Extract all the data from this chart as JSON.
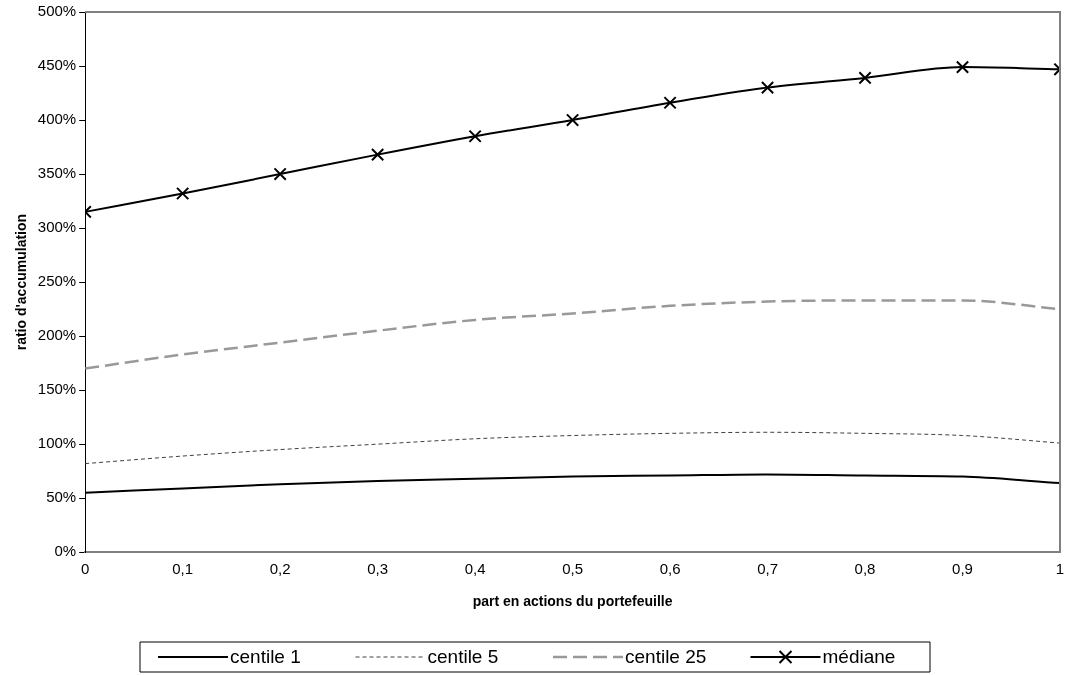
{
  "chart_data": {
    "type": "line",
    "xlabel": "part en actions du portefeuille",
    "ylabel": "ratio d'accumulation",
    "x": [
      0,
      0.1,
      0.2,
      0.3,
      0.4,
      0.5,
      0.6,
      0.7,
      0.8,
      0.9,
      1
    ],
    "xlim": [
      0,
      1
    ],
    "xticks": [
      {
        "value": 0,
        "label": "0"
      },
      {
        "value": 0.1,
        "label": "0,1"
      },
      {
        "value": 0.2,
        "label": "0,2"
      },
      {
        "value": 0.3,
        "label": "0,3"
      },
      {
        "value": 0.4,
        "label": "0,4"
      },
      {
        "value": 0.5,
        "label": "0,5"
      },
      {
        "value": 0.6,
        "label": "0,6"
      },
      {
        "value": 0.7,
        "label": "0,7"
      },
      {
        "value": 0.8,
        "label": "0,8"
      },
      {
        "value": 0.9,
        "label": "0,9"
      },
      {
        "value": 1,
        "label": "1"
      }
    ],
    "ylim": [
      0,
      500
    ],
    "yticks": [
      {
        "value": 0,
        "label": "0%"
      },
      {
        "value": 50,
        "label": "50%"
      },
      {
        "value": 100,
        "label": "100%"
      },
      {
        "value": 150,
        "label": "150%"
      },
      {
        "value": 200,
        "label": "200%"
      },
      {
        "value": 250,
        "label": "250%"
      },
      {
        "value": 300,
        "label": "300%"
      },
      {
        "value": 350,
        "label": "350%"
      },
      {
        "value": 400,
        "label": "400%"
      },
      {
        "value": 450,
        "label": "450%"
      },
      {
        "value": 500,
        "label": "500%"
      }
    ],
    "grid": false,
    "legend": "bottom",
    "series": [
      {
        "name": "centile 1",
        "color": "#000000",
        "line_style": "solid",
        "marker": "none",
        "values": [
          55,
          59,
          63,
          66,
          68,
          70,
          71,
          72,
          71,
          70,
          64
        ]
      },
      {
        "name": "centile 5",
        "color": "#404040",
        "line_style": "dotted",
        "marker": "none",
        "values": [
          82,
          89,
          95,
          100,
          105,
          108,
          110,
          111,
          110,
          108,
          101
        ]
      },
      {
        "name": "centile 25",
        "color": "#999999",
        "line_style": "dashed",
        "marker": "none",
        "values": [
          170,
          183,
          194,
          205,
          215,
          221,
          228,
          232,
          233,
          233,
          225
        ]
      },
      {
        "name": "médiane",
        "color": "#000000",
        "line_style": "solid",
        "marker": "cross",
        "values": [
          315,
          332,
          350,
          368,
          385,
          400,
          416,
          430,
          439,
          449,
          447
        ]
      }
    ]
  }
}
